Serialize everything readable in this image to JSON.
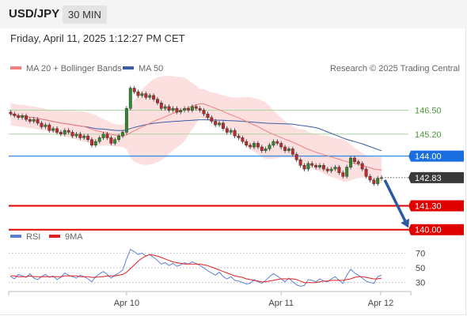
{
  "header": {
    "symbol": "USD/JPY",
    "timeframe": "30 MIN"
  },
  "timestamp": "Friday, April 11, 2025 1:12:27 PM CET",
  "legend": {
    "ma20": "MA 20 + Bollinger Bands",
    "ma50": "MA 50",
    "copyright": "Research © 2025 Trading Central"
  },
  "rsi_legend": {
    "rsi": "RSI",
    "ma": "9MA"
  },
  "colors": {
    "ma20": "#f08080",
    "ma50": "#3b5ba5",
    "band": "#fbd5d5",
    "support": "#e00000",
    "pivot": "#1a6fe0",
    "resistance_line": "#a8d8a0",
    "resistance_text": "#4a9a3a",
    "price_tag": "#3a3a3a",
    "candle_up": "#2e8b2e",
    "candle_down": "#c62828",
    "rsi": "#5a7fd8",
    "rsi_ma": "#e02020"
  },
  "chart_data": {
    "type": "candlestick",
    "title": "USD/JPY 30 MIN",
    "x_ticks": [
      "Apr 10",
      "Apr 11",
      "Apr 12"
    ],
    "ylim": [
      139.6,
      148.2
    ],
    "current_price": 142.83,
    "levels": [
      {
        "label": "146.50",
        "value": 146.5,
        "kind": "resistance"
      },
      {
        "label": "145.20",
        "value": 145.2,
        "kind": "resistance"
      },
      {
        "label": "144.00",
        "value": 144.0,
        "kind": "pivot"
      },
      {
        "label": "141.30",
        "value": 141.3,
        "kind": "support"
      },
      {
        "label": "140.00",
        "value": 140.0,
        "kind": "support"
      }
    ],
    "forecast_arrow": {
      "from": 142.7,
      "to": 140.1
    },
    "closes": [
      146.3,
      146.2,
      146.1,
      146.2,
      146.0,
      145.9,
      146.0,
      145.8,
      145.6,
      145.7,
      145.4,
      145.5,
      145.3,
      145.2,
      145.4,
      145.3,
      145.1,
      145.2,
      145.0,
      145.1,
      144.9,
      144.6,
      144.8,
      145.0,
      145.2,
      145.0,
      144.7,
      144.9,
      145.1,
      145.3,
      146.6,
      147.7,
      147.5,
      147.3,
      147.4,
      147.2,
      147.3,
      147.1,
      146.9,
      146.6,
      146.7,
      146.5,
      146.6,
      146.4,
      146.5,
      146.6,
      146.5,
      146.7,
      146.6,
      146.5,
      146.3,
      146.1,
      145.9,
      145.7,
      145.8,
      145.5,
      145.3,
      145.4,
      145.1,
      145.0,
      144.8,
      144.6,
      144.5,
      144.7,
      144.5,
      144.3,
      144.4,
      144.6,
      144.8,
      144.7,
      144.5,
      144.3,
      144.4,
      144.1,
      143.8,
      143.5,
      143.3,
      143.6,
      143.5,
      143.4,
      143.5,
      143.3,
      143.2,
      143.3,
      143.4,
      143.1,
      142.9,
      143.4,
      143.9,
      143.7,
      143.6,
      143.3,
      142.9,
      142.7,
      142.5,
      142.8,
      142.83
    ],
    "rsi": {
      "yticks": [
        70,
        50,
        30
      ],
      "ylim": [
        20,
        80
      ],
      "values": [
        38,
        35,
        41,
        39,
        37,
        42,
        36,
        34,
        38,
        41,
        37,
        39,
        34,
        37,
        43,
        40,
        38,
        36,
        40,
        38,
        35,
        31,
        38,
        42,
        45,
        41,
        36,
        40,
        43,
        47,
        62,
        75,
        72,
        68,
        70,
        66,
        68,
        64,
        60,
        55,
        57,
        53,
        56,
        52,
        54,
        57,
        55,
        58,
        56,
        53,
        50,
        46,
        43,
        40,
        44,
        38,
        35,
        38,
        33,
        32,
        30,
        28,
        29,
        34,
        31,
        29,
        33,
        38,
        42,
        39,
        35,
        31,
        36,
        31,
        27,
        25,
        26,
        34,
        33,
        31,
        35,
        32,
        31,
        35,
        38,
        33,
        29,
        40,
        48,
        43,
        40,
        36,
        32,
        30,
        29,
        38,
        40
      ],
      "ma_values": [
        39,
        39,
        38,
        38,
        38,
        39,
        38,
        38,
        38,
        38,
        38,
        38,
        38,
        38,
        39,
        39,
        39,
        39,
        38,
        38,
        38,
        37,
        37,
        38,
        38,
        39,
        39,
        39,
        40,
        41,
        44,
        49,
        54,
        59,
        63,
        66,
        68,
        67,
        66,
        64,
        62,
        60,
        58,
        57,
        56,
        55,
        55,
        55,
        55,
        55,
        54,
        53,
        51,
        49,
        47,
        45,
        43,
        41,
        39,
        38,
        37,
        35,
        34,
        33,
        32,
        31,
        31,
        32,
        33,
        34,
        35,
        35,
        35,
        35,
        34,
        32,
        30,
        30,
        30,
        30,
        31,
        32,
        32,
        33,
        33,
        33,
        33,
        34,
        35,
        37,
        38,
        38,
        37,
        36,
        35,
        35,
        36
      ]
    }
  }
}
